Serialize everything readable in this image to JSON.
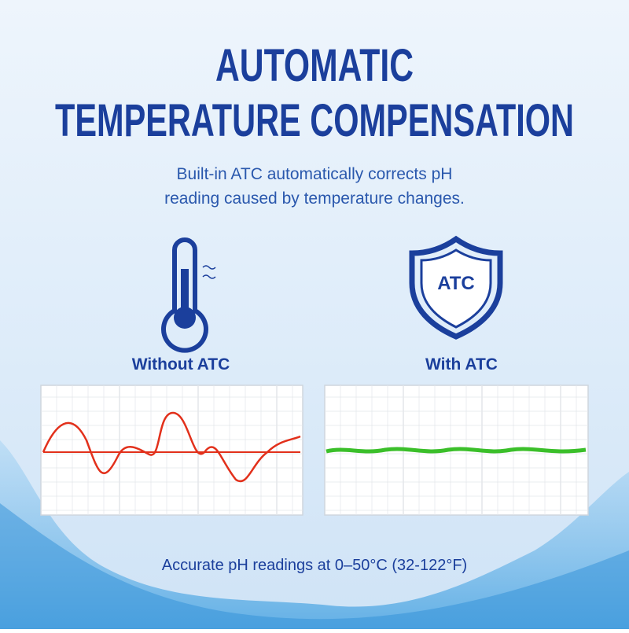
{
  "header": {
    "title_lines": [
      "AUTOMATIC",
      "TEMPERATURE COMPENSATION"
    ],
    "subtitle_lines": [
      "Built-in ATC automatically corrects pH",
      "reading caused by temperature changes."
    ]
  },
  "panels": [
    {
      "label": "Without ATC"
    },
    {
      "label": "With ATC",
      "icon_text": "ATC"
    }
  ],
  "footer": "Accurate pH readings at 0–50°C (32-122°F)"
}
